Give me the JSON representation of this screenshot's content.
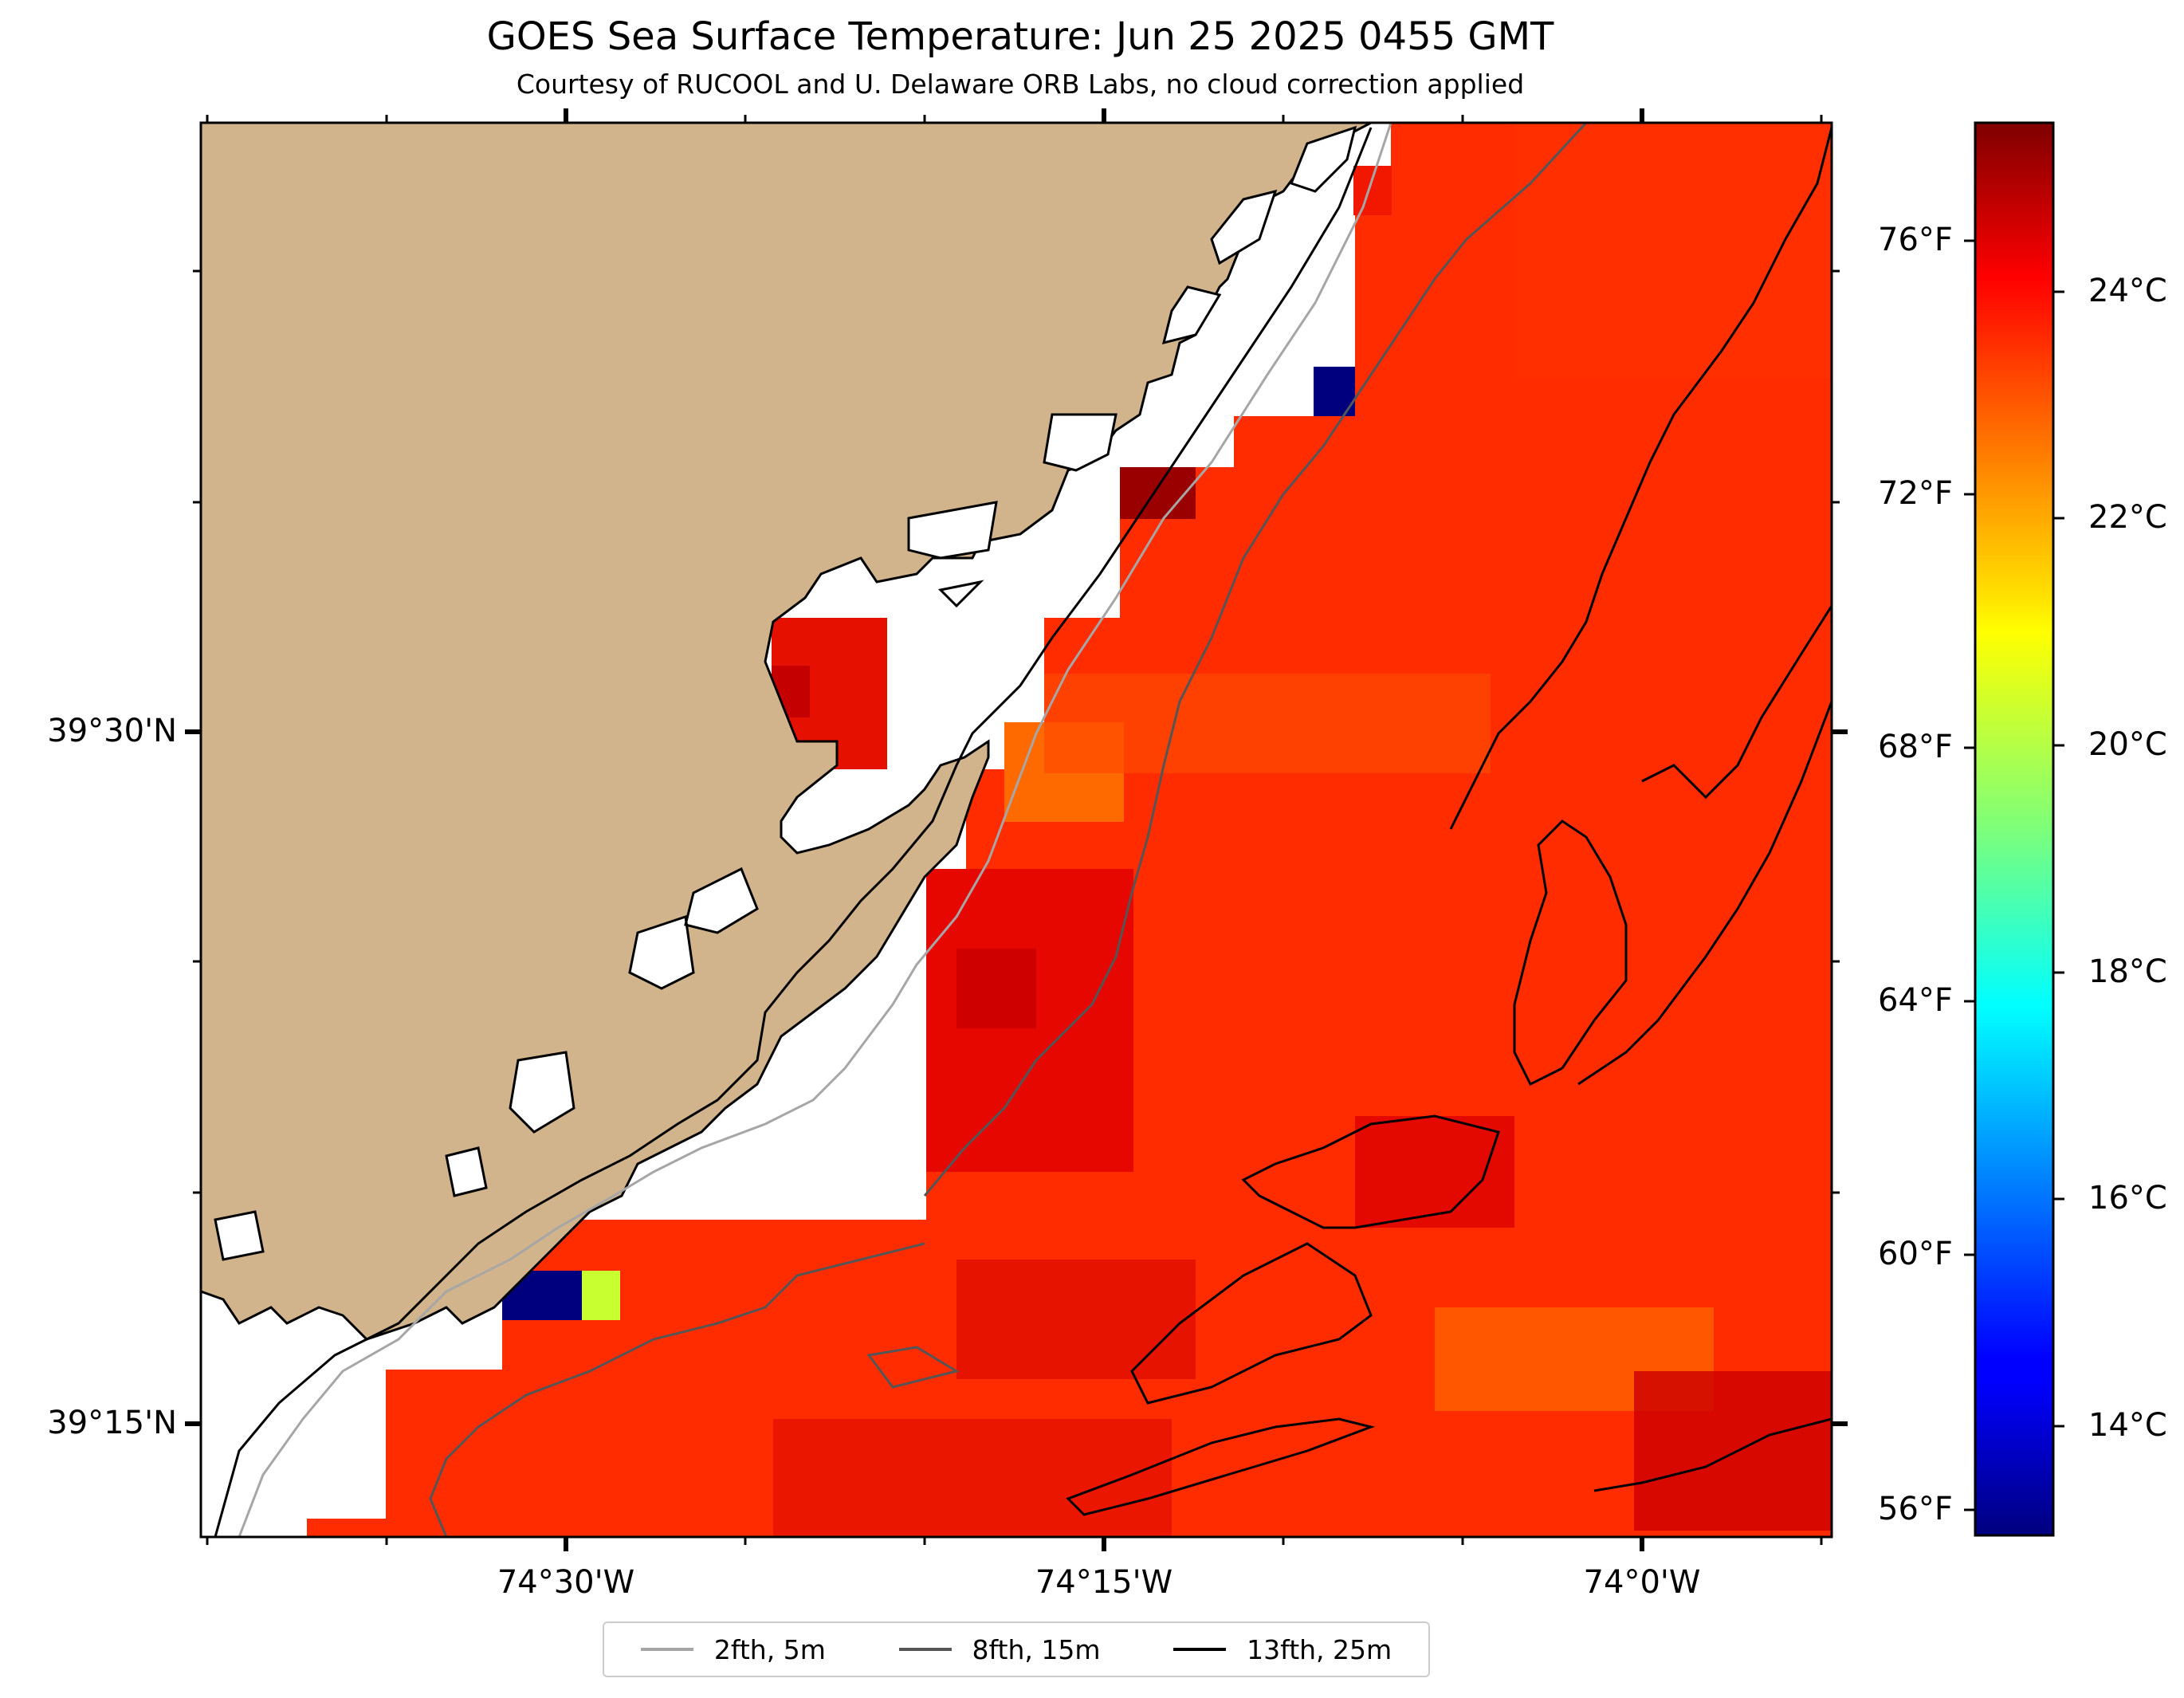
{
  "title": "GOES Sea Surface Temperature: Jun 25 2025 0455 GMT",
  "subtitle": "Courtesy of RUCOOL and U. Delaware ORB Labs, no cloud correction applied",
  "map": {
    "land_color": "#D2B48C",
    "water_nodata_color": "#ffffff",
    "lat_labels": [
      "39°30'N",
      "39°15'N"
    ],
    "lon_labels": [
      "74°30'W",
      "74°15'W",
      "74°0'W"
    ]
  },
  "colorbar": {
    "colormap": "jet",
    "range_c": [
      13,
      25.5
    ],
    "celsius_labels": [
      "24°C",
      "22°C",
      "20°C",
      "18°C",
      "16°C",
      "14°C"
    ],
    "fahrenheit_labels": [
      "76°F",
      "72°F",
      "68°F",
      "64°F",
      "60°F",
      "56°F"
    ]
  },
  "legend": {
    "items": [
      {
        "label": "2fth, 5m",
        "color": "#a6a6a6"
      },
      {
        "label": "8fth, 15m",
        "color": "#555555"
      },
      {
        "label": "13fth, 25m",
        "color": "#000000"
      }
    ]
  }
}
